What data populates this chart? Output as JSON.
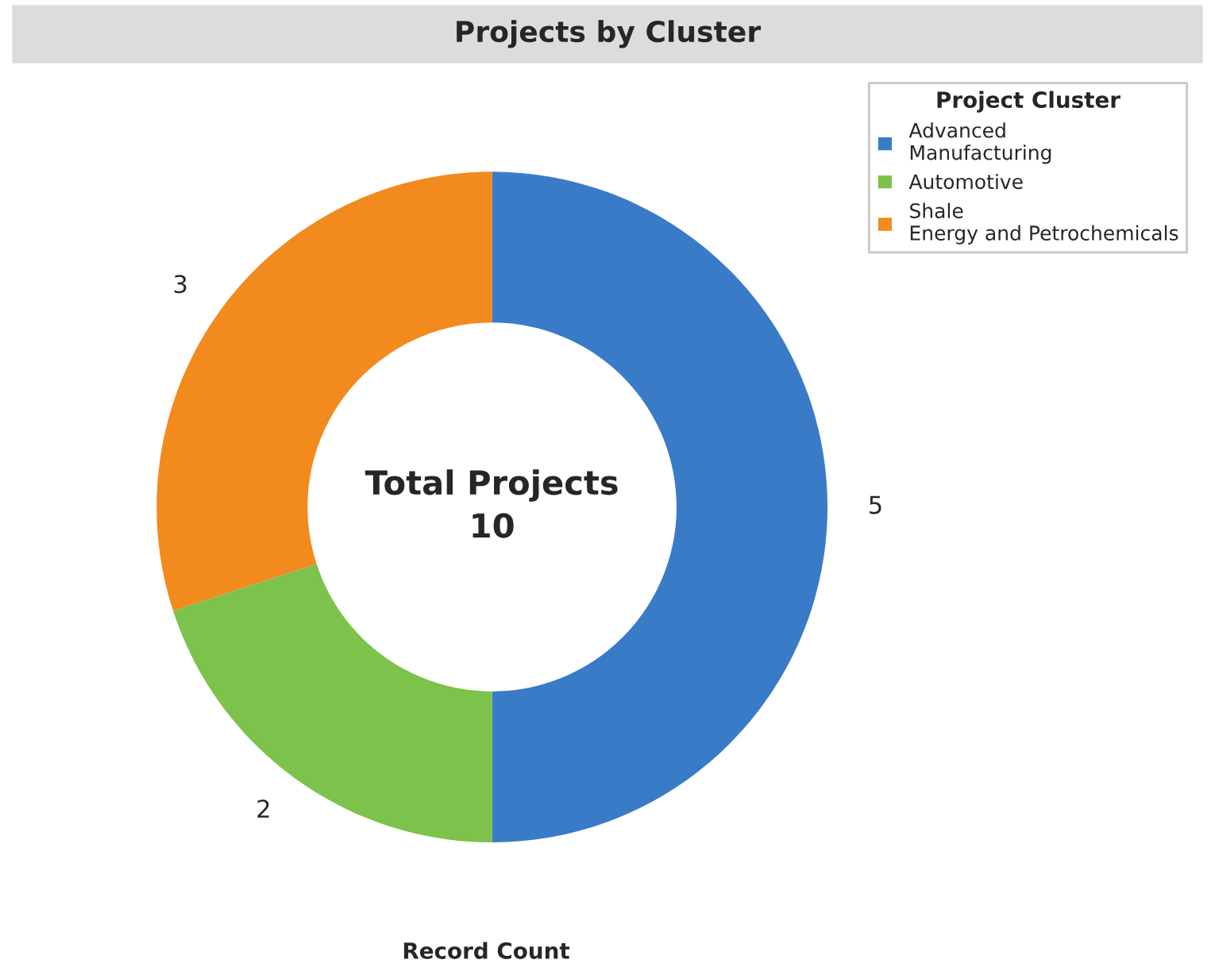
{
  "chart_data": {
    "type": "donut",
    "title": "Projects by Cluster",
    "xlabel": "Record Count",
    "legend_title": "Project Cluster",
    "legend": "top right",
    "data_labels": true,
    "categories": [
      "Advanced Manufacturing",
      "Automotive",
      "Shale Energy and Petrochemicals"
    ],
    "values": [
      5,
      2,
      3
    ],
    "colors": [
      "#3a7bc8",
      "#7dc24b",
      "#f28a1e"
    ],
    "annotations": [
      "Total Projects",
      "10"
    ]
  }
}
